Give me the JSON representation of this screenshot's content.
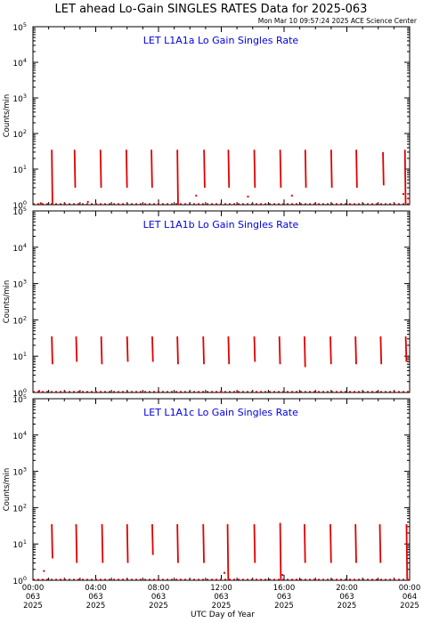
{
  "header": {
    "title": "LET ahead Lo-Gain SINGLES RATES Data for 2025-063",
    "timestamp": "Mon Mar 10 09:57:24 2025 ACE Science Center"
  },
  "axes": {
    "ylabel": "Counts/min",
    "xlabel": "UTC Day of Year",
    "y_ticks": [
      {
        "exp": "0",
        "value": 1
      },
      {
        "exp": "1",
        "value": 10
      },
      {
        "exp": "2",
        "value": 100
      },
      {
        "exp": "3",
        "value": 1000
      },
      {
        "exp": "4",
        "value": 10000
      },
      {
        "exp": "5",
        "value": 100000
      }
    ],
    "x_ticks": [
      {
        "hour": 0,
        "l1": "00:00",
        "l2": "063",
        "l3": "2025"
      },
      {
        "hour": 4,
        "l1": "04:00",
        "l2": "063",
        "l3": "2025"
      },
      {
        "hour": 8,
        "l1": "08:00",
        "l2": "063",
        "l3": "2025"
      },
      {
        "hour": 12,
        "l1": "12:00",
        "l2": "063",
        "l3": "2025"
      },
      {
        "hour": 16,
        "l1": "16:00",
        "l2": "063",
        "l3": "2025"
      },
      {
        "hour": 20,
        "l1": "20:00",
        "l2": "063",
        "l3": "2025"
      },
      {
        "hour": 24,
        "l1": "00:00",
        "l2": "064",
        "l3": "2025"
      }
    ]
  },
  "colors": {
    "series": "#e00000",
    "panel_title": "#0000e0",
    "axis": "#000000"
  },
  "chart_data": [
    {
      "type": "line",
      "title": "LET L1A1a Lo Gain Singles Rate",
      "x_unit": "UTC hour of day 063",
      "y_scale": "log",
      "ylim": [
        1,
        100000
      ],
      "xlim": [
        0,
        24
      ],
      "spikes": [
        {
          "x": 1.2,
          "top": 35,
          "bottom": 1
        },
        {
          "x": 2.65,
          "top": 35,
          "bottom": 3
        },
        {
          "x": 4.3,
          "top": 35,
          "bottom": 3
        },
        {
          "x": 5.95,
          "top": 35,
          "bottom": 3
        },
        {
          "x": 7.55,
          "top": 35,
          "bottom": 3
        },
        {
          "x": 9.2,
          "top": 35,
          "bottom": 1
        },
        {
          "x": 10.9,
          "top": 35,
          "bottom": 3
        },
        {
          "x": 12.45,
          "top": 35,
          "bottom": 3
        },
        {
          "x": 14.1,
          "top": 35,
          "bottom": 3
        },
        {
          "x": 15.75,
          "top": 35,
          "bottom": 3
        },
        {
          "x": 17.35,
          "top": 35,
          "bottom": 3
        },
        {
          "x": 19.0,
          "top": 35,
          "bottom": 3
        },
        {
          "x": 20.6,
          "top": 35,
          "bottom": 3
        },
        {
          "x": 22.3,
          "top": 30,
          "bottom": 3.5
        },
        {
          "x": 23.7,
          "top": 35,
          "bottom": 1
        }
      ],
      "scatter_points": [
        {
          "x": 0.5,
          "y": 1.1
        },
        {
          "x": 3.5,
          "y": 1.2
        },
        {
          "x": 10.4,
          "y": 1.8
        },
        {
          "x": 13.7,
          "y": 1.7
        },
        {
          "x": 16.5,
          "y": 1.8
        },
        {
          "x": 23.6,
          "y": 2.0
        },
        {
          "x": 23.9,
          "y": 1.5
        }
      ]
    },
    {
      "type": "line",
      "title": "LET L1A1b Lo Gain Singles Rate",
      "x_unit": "UTC hour of day 063",
      "y_scale": "log",
      "ylim": [
        1,
        100000
      ],
      "xlim": [
        0,
        24
      ],
      "spikes": [
        {
          "x": 1.2,
          "top": 35,
          "bottom": 6
        },
        {
          "x": 2.75,
          "top": 35,
          "bottom": 7
        },
        {
          "x": 4.35,
          "top": 35,
          "bottom": 6
        },
        {
          "x": 6.0,
          "top": 35,
          "bottom": 7
        },
        {
          "x": 7.6,
          "top": 35,
          "bottom": 7
        },
        {
          "x": 9.2,
          "top": 35,
          "bottom": 6
        },
        {
          "x": 10.85,
          "top": 35,
          "bottom": 6
        },
        {
          "x": 12.45,
          "top": 35,
          "bottom": 6
        },
        {
          "x": 14.1,
          "top": 35,
          "bottom": 7
        },
        {
          "x": 15.7,
          "top": 35,
          "bottom": 6
        },
        {
          "x": 17.3,
          "top": 35,
          "bottom": 5
        },
        {
          "x": 18.95,
          "top": 35,
          "bottom": 6
        },
        {
          "x": 20.55,
          "top": 35,
          "bottom": 6
        },
        {
          "x": 22.15,
          "top": 35,
          "bottom": 6
        },
        {
          "x": 23.75,
          "top": 35,
          "bottom": 7
        }
      ],
      "scatter_points": [
        {
          "x": 0.4,
          "y": 1.1
        },
        {
          "x": 12.0,
          "y": 1.05
        }
      ]
    },
    {
      "type": "line",
      "title": "LET L1A1c Lo Gain Singles Rate",
      "x_unit": "UTC hour of day 063",
      "y_scale": "log",
      "ylim": [
        1,
        100000
      ],
      "xlim": [
        0,
        24
      ],
      "spikes": [
        {
          "x": 1.2,
          "top": 35,
          "bottom": 4
        },
        {
          "x": 2.75,
          "top": 35,
          "bottom": 3
        },
        {
          "x": 4.4,
          "top": 35,
          "bottom": 3
        },
        {
          "x": 6.0,
          "top": 35,
          "bottom": 3
        },
        {
          "x": 7.6,
          "top": 35,
          "bottom": 5
        },
        {
          "x": 9.2,
          "top": 35,
          "bottom": 3
        },
        {
          "x": 10.85,
          "top": 35,
          "bottom": 3
        },
        {
          "x": 12.4,
          "top": 35,
          "bottom": 1
        },
        {
          "x": 14.1,
          "top": 35,
          "bottom": 3
        },
        {
          "x": 15.75,
          "top": 38,
          "bottom": 1
        },
        {
          "x": 17.3,
          "top": 35,
          "bottom": 3
        },
        {
          "x": 18.95,
          "top": 35,
          "bottom": 3
        },
        {
          "x": 20.55,
          "top": 35,
          "bottom": 3
        },
        {
          "x": 22.1,
          "top": 35,
          "bottom": 3
        },
        {
          "x": 23.8,
          "top": 35,
          "bottom": 1
        }
      ],
      "scatter_points": [
        {
          "x": 0.7,
          "y": 1.8
        },
        {
          "x": 12.2,
          "y": 1.6
        },
        {
          "x": 15.9,
          "y": 1.4
        }
      ]
    }
  ]
}
